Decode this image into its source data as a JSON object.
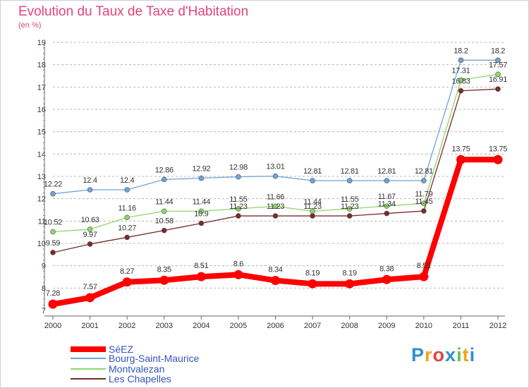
{
  "chart_data": {
    "type": "line",
    "title": "Evolution du Taux de Taxe d'Habitation",
    "subtitle": "(en %)",
    "categories": [
      "2000",
      "2001",
      "2002",
      "2003",
      "2004",
      "2005",
      "2006",
      "2007",
      "2008",
      "2009",
      "2010",
      "2011",
      "2012"
    ],
    "ylim": [
      7,
      19
    ],
    "yticks": [
      "7",
      "8",
      "9",
      "10",
      "11",
      "12",
      "13",
      "14",
      "15",
      "16",
      "17",
      "18",
      "19"
    ],
    "grid": "horizontal dashed",
    "legend_position": "bottom-left",
    "series": [
      {
        "name": "SéEZ",
        "color": "#ff0000",
        "values": [
          7.28,
          7.57,
          8.27,
          8.35,
          8.51,
          8.6,
          8.34,
          8.19,
          8.19,
          8.38,
          8.51,
          13.75,
          13.75
        ],
        "labels": [
          "7.28",
          "7.57",
          "8.27",
          "8.35",
          "8.51",
          "8.6",
          "8.34",
          "8.19",
          "8.19",
          "8.38",
          "8.51",
          "13.75",
          "13.75"
        ]
      },
      {
        "name": "Bourg-Saint-Maurice",
        "color": "#6fa3d6",
        "values": [
          12.22,
          12.4,
          12.4,
          12.86,
          12.92,
          12.98,
          13.01,
          12.81,
          12.81,
          12.81,
          12.81,
          18.2,
          18.2
        ],
        "labels": [
          "12.22",
          "12.4",
          "12.4",
          "12.86",
          "12.92",
          "12.98",
          "13.01",
          "12.81",
          "12.81",
          "12.81",
          "12.81",
          "18.2",
          "18.2"
        ]
      },
      {
        "name": "Montvalezan",
        "color": "#8ed66b",
        "values": [
          10.52,
          10.63,
          11.16,
          11.44,
          11.44,
          11.55,
          11.66,
          11.44,
          11.55,
          11.67,
          11.79,
          17.31,
          17.57
        ],
        "labels": [
          "10.52",
          "10.63",
          "11.16",
          "11.44",
          "11.44",
          "11.55",
          "11.66",
          "11.44",
          "11.55",
          "11.67",
          "11.79",
          "17.31",
          "17.57"
        ]
      },
      {
        "name": "Les Chapelles",
        "color": "#7a2a2a",
        "values": [
          9.59,
          9.97,
          10.27,
          10.58,
          10.9,
          11.23,
          11.23,
          11.23,
          11.23,
          11.34,
          11.45,
          16.83,
          16.91
        ],
        "labels": [
          "9.59",
          "9.97",
          "10.27",
          "10.58",
          "10.9",
          "11.23",
          "11.23",
          "11.23",
          "11.23",
          "11.34",
          "11.45",
          "16.83",
          "16.91"
        ]
      }
    ]
  },
  "legend": [
    {
      "label": "SéEZ",
      "color": "#ff0000"
    },
    {
      "label": "Bourg-Saint-Maurice",
      "color": "#6fa3d6"
    },
    {
      "label": "Montvalezan",
      "color": "#8ed66b"
    },
    {
      "label": "Les Chapelles",
      "color": "#7a2a2a"
    }
  ],
  "logo": {
    "text": "Proxiti",
    "letters": [
      "P",
      "r",
      "o",
      "x",
      "i",
      "t",
      "i"
    ],
    "colors": [
      "#2e8fd0",
      "#f3a21b",
      "#e2453c",
      "#2e8fd0",
      "#6cc04a",
      "#f3a21b",
      "#2e8fd0"
    ]
  }
}
